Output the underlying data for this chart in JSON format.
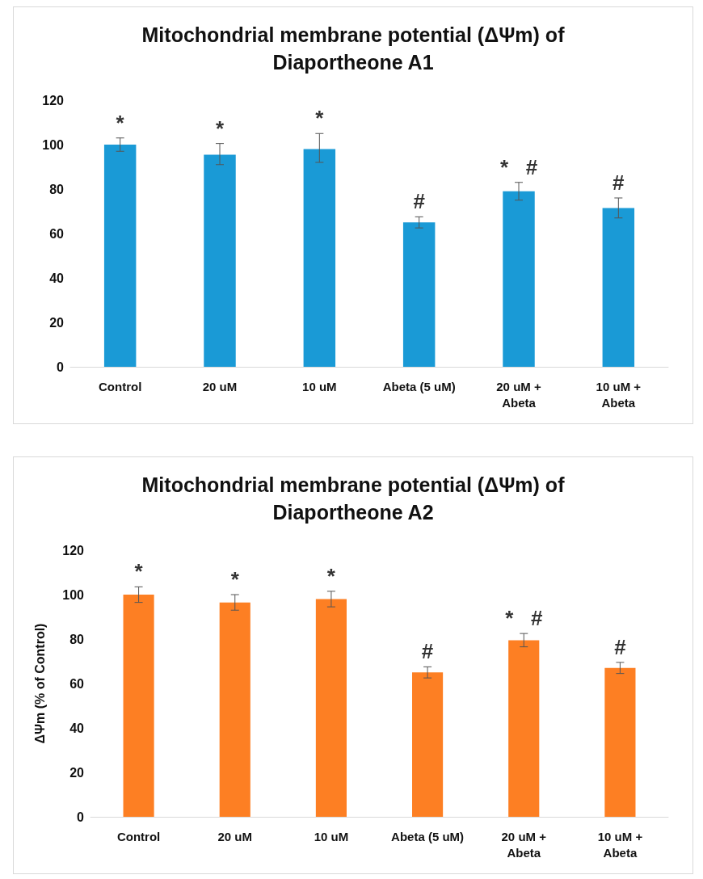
{
  "chart_data": [
    {
      "type": "bar",
      "title": "Mitochondrial membrane potential (ΔΨm) of\nDiaportheone A1",
      "categories": [
        "Control",
        "20 uM",
        "10 uM",
        "Abeta (5 uM)",
        "20 uM +\nAbeta",
        "10 uM +\nAbeta"
      ],
      "series": [
        {
          "color": "#1a9ad6",
          "values": [
            100,
            95.5,
            98,
            65,
            79,
            71.5
          ],
          "errors": [
            3,
            [
              91,
              100.5
            ],
            [
              92,
              105
            ],
            2.5,
            4,
            4.5
          ]
        }
      ],
      "ylim": [
        0,
        120
      ],
      "yticks": [
        0,
        20,
        40,
        60,
        80,
        100,
        120
      ],
      "grid": false,
      "annotations": [
        "*",
        "*",
        "*",
        "#",
        "*   #",
        "#"
      ]
    },
    {
      "type": "bar",
      "title": "Mitochondrial membrane potential (ΔΨm) of\nDiaportheone A2",
      "ylabel": "ΔΨm (% of Control)",
      "categories": [
        "Control",
        "20 uM",
        "10 uM",
        "Abeta (5 uM)",
        "20 uM +\nAbeta",
        "10 uM +\nAbeta"
      ],
      "series": [
        {
          "color": "#fd7f23",
          "values": [
            100,
            96.5,
            98,
            65,
            79.5,
            67
          ],
          "errors": [
            3.5,
            3.5,
            3.5,
            2.5,
            3,
            2.5
          ]
        }
      ],
      "ylim": [
        0,
        120
      ],
      "yticks": [
        0,
        20,
        40,
        60,
        80,
        100,
        120
      ],
      "grid": false,
      "annotations": [
        "*",
        "*",
        "*",
        "#",
        "*   #",
        "#"
      ]
    }
  ]
}
